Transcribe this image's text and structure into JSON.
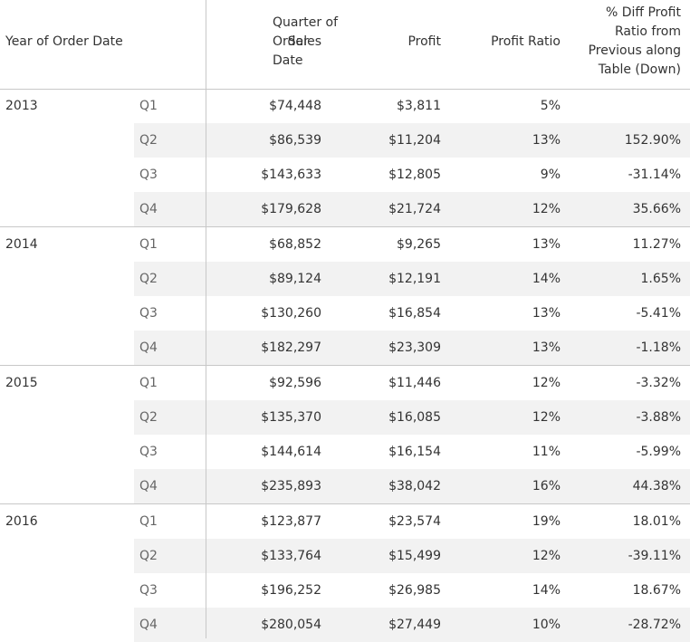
{
  "headers": {
    "year": "Year of Order Date",
    "quarter": [
      "Quarter of",
      "Order",
      "Date"
    ],
    "sales": "Sales",
    "profit": "Profit",
    "ratio": "Profit Ratio",
    "diff": [
      "% Diff Profit",
      "Ratio from",
      "Previous along",
      "Table (Down)"
    ]
  },
  "chart_data": {
    "type": "table",
    "columns": [
      "Year of Order Date",
      "Quarter of Order Date",
      "Sales",
      "Profit",
      "Profit Ratio",
      "% Diff Profit Ratio from Previous along Table (Down)"
    ],
    "years": [
      {
        "year": "2013",
        "rows": [
          {
            "quarter": "Q1",
            "sales": "$74,448",
            "profit": "$3,811",
            "ratio": "5%",
            "diff": ""
          },
          {
            "quarter": "Q2",
            "sales": "$86,539",
            "profit": "$11,204",
            "ratio": "13%",
            "diff": "152.90%"
          },
          {
            "quarter": "Q3",
            "sales": "$143,633",
            "profit": "$12,805",
            "ratio": "9%",
            "diff": "-31.14%"
          },
          {
            "quarter": "Q4",
            "sales": "$179,628",
            "profit": "$21,724",
            "ratio": "12%",
            "diff": "35.66%"
          }
        ]
      },
      {
        "year": "2014",
        "rows": [
          {
            "quarter": "Q1",
            "sales": "$68,852",
            "profit": "$9,265",
            "ratio": "13%",
            "diff": "11.27%"
          },
          {
            "quarter": "Q2",
            "sales": "$89,124",
            "profit": "$12,191",
            "ratio": "14%",
            "diff": "1.65%"
          },
          {
            "quarter": "Q3",
            "sales": "$130,260",
            "profit": "$16,854",
            "ratio": "13%",
            "diff": "-5.41%"
          },
          {
            "quarter": "Q4",
            "sales": "$182,297",
            "profit": "$23,309",
            "ratio": "13%",
            "diff": "-1.18%"
          }
        ]
      },
      {
        "year": "2015",
        "rows": [
          {
            "quarter": "Q1",
            "sales": "$92,596",
            "profit": "$11,446",
            "ratio": "12%",
            "diff": "-3.32%"
          },
          {
            "quarter": "Q2",
            "sales": "$135,370",
            "profit": "$16,085",
            "ratio": "12%",
            "diff": "-3.88%"
          },
          {
            "quarter": "Q3",
            "sales": "$144,614",
            "profit": "$16,154",
            "ratio": "11%",
            "diff": "-5.99%"
          },
          {
            "quarter": "Q4",
            "sales": "$235,893",
            "profit": "$38,042",
            "ratio": "16%",
            "diff": "44.38%"
          }
        ]
      },
      {
        "year": "2016",
        "rows": [
          {
            "quarter": "Q1",
            "sales": "$123,877",
            "profit": "$23,574",
            "ratio": "19%",
            "diff": "18.01%"
          },
          {
            "quarter": "Q2",
            "sales": "$133,764",
            "profit": "$15,499",
            "ratio": "12%",
            "diff": "-39.11%"
          },
          {
            "quarter": "Q3",
            "sales": "$196,252",
            "profit": "$26,985",
            "ratio": "14%",
            "diff": "18.67%"
          },
          {
            "quarter": "Q4",
            "sales": "$280,054",
            "profit": "$27,449",
            "ratio": "10%",
            "diff": "-28.72%"
          }
        ]
      }
    ]
  }
}
